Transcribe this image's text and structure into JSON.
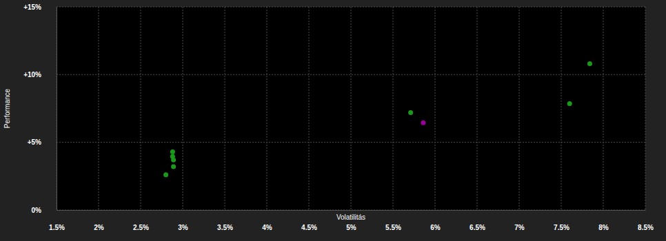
{
  "chart_data": {
    "type": "scatter",
    "x_label": "Volatilitás",
    "y_label": "Performance",
    "x": [
      2.88,
      2.88,
      2.89,
      2.89,
      2.8,
      5.71,
      5.86,
      7.6,
      7.84
    ],
    "values": [
      4.3,
      3.95,
      3.7,
      3.2,
      2.6,
      7.2,
      6.45,
      7.85,
      10.8
    ],
    "colors": [
      "#1a9a1a",
      "#1a9a1a",
      "#1a9a1a",
      "#1a9a1a",
      "#1a9a1a",
      "#1a9a1a",
      "#990099",
      "#1a9a1a",
      "#1a9a1a"
    ],
    "xlim": [
      1.5,
      8.5
    ],
    "xticks": [
      {
        "value": 1.5,
        "label": "1.5%"
      },
      {
        "value": 2,
        "label": "2%"
      },
      {
        "value": 2.5,
        "label": "2.5%"
      },
      {
        "value": 3,
        "label": "3%"
      },
      {
        "value": 3.5,
        "label": "3.5%"
      },
      {
        "value": 4,
        "label": "4%"
      },
      {
        "value": 4.5,
        "label": "4.5%"
      },
      {
        "value": 5,
        "label": "5%"
      },
      {
        "value": 5.5,
        "label": "5.5%"
      },
      {
        "value": 6,
        "label": "6%"
      },
      {
        "value": 6.5,
        "label": "6.5%"
      },
      {
        "value": 7,
        "label": "7%"
      },
      {
        "value": 7.5,
        "label": "7.5%"
      },
      {
        "value": 8,
        "label": "8%"
      },
      {
        "value": 8.5,
        "label": "8.5%"
      }
    ],
    "ylim": [
      0,
      15
    ],
    "yticks": [
      {
        "value": 0,
        "label": "0%"
      },
      {
        "value": 5,
        "label": "+5%"
      },
      {
        "value": 10,
        "label": "+10%"
      },
      {
        "value": 15,
        "label": "+15%"
      }
    ],
    "grid": true
  }
}
